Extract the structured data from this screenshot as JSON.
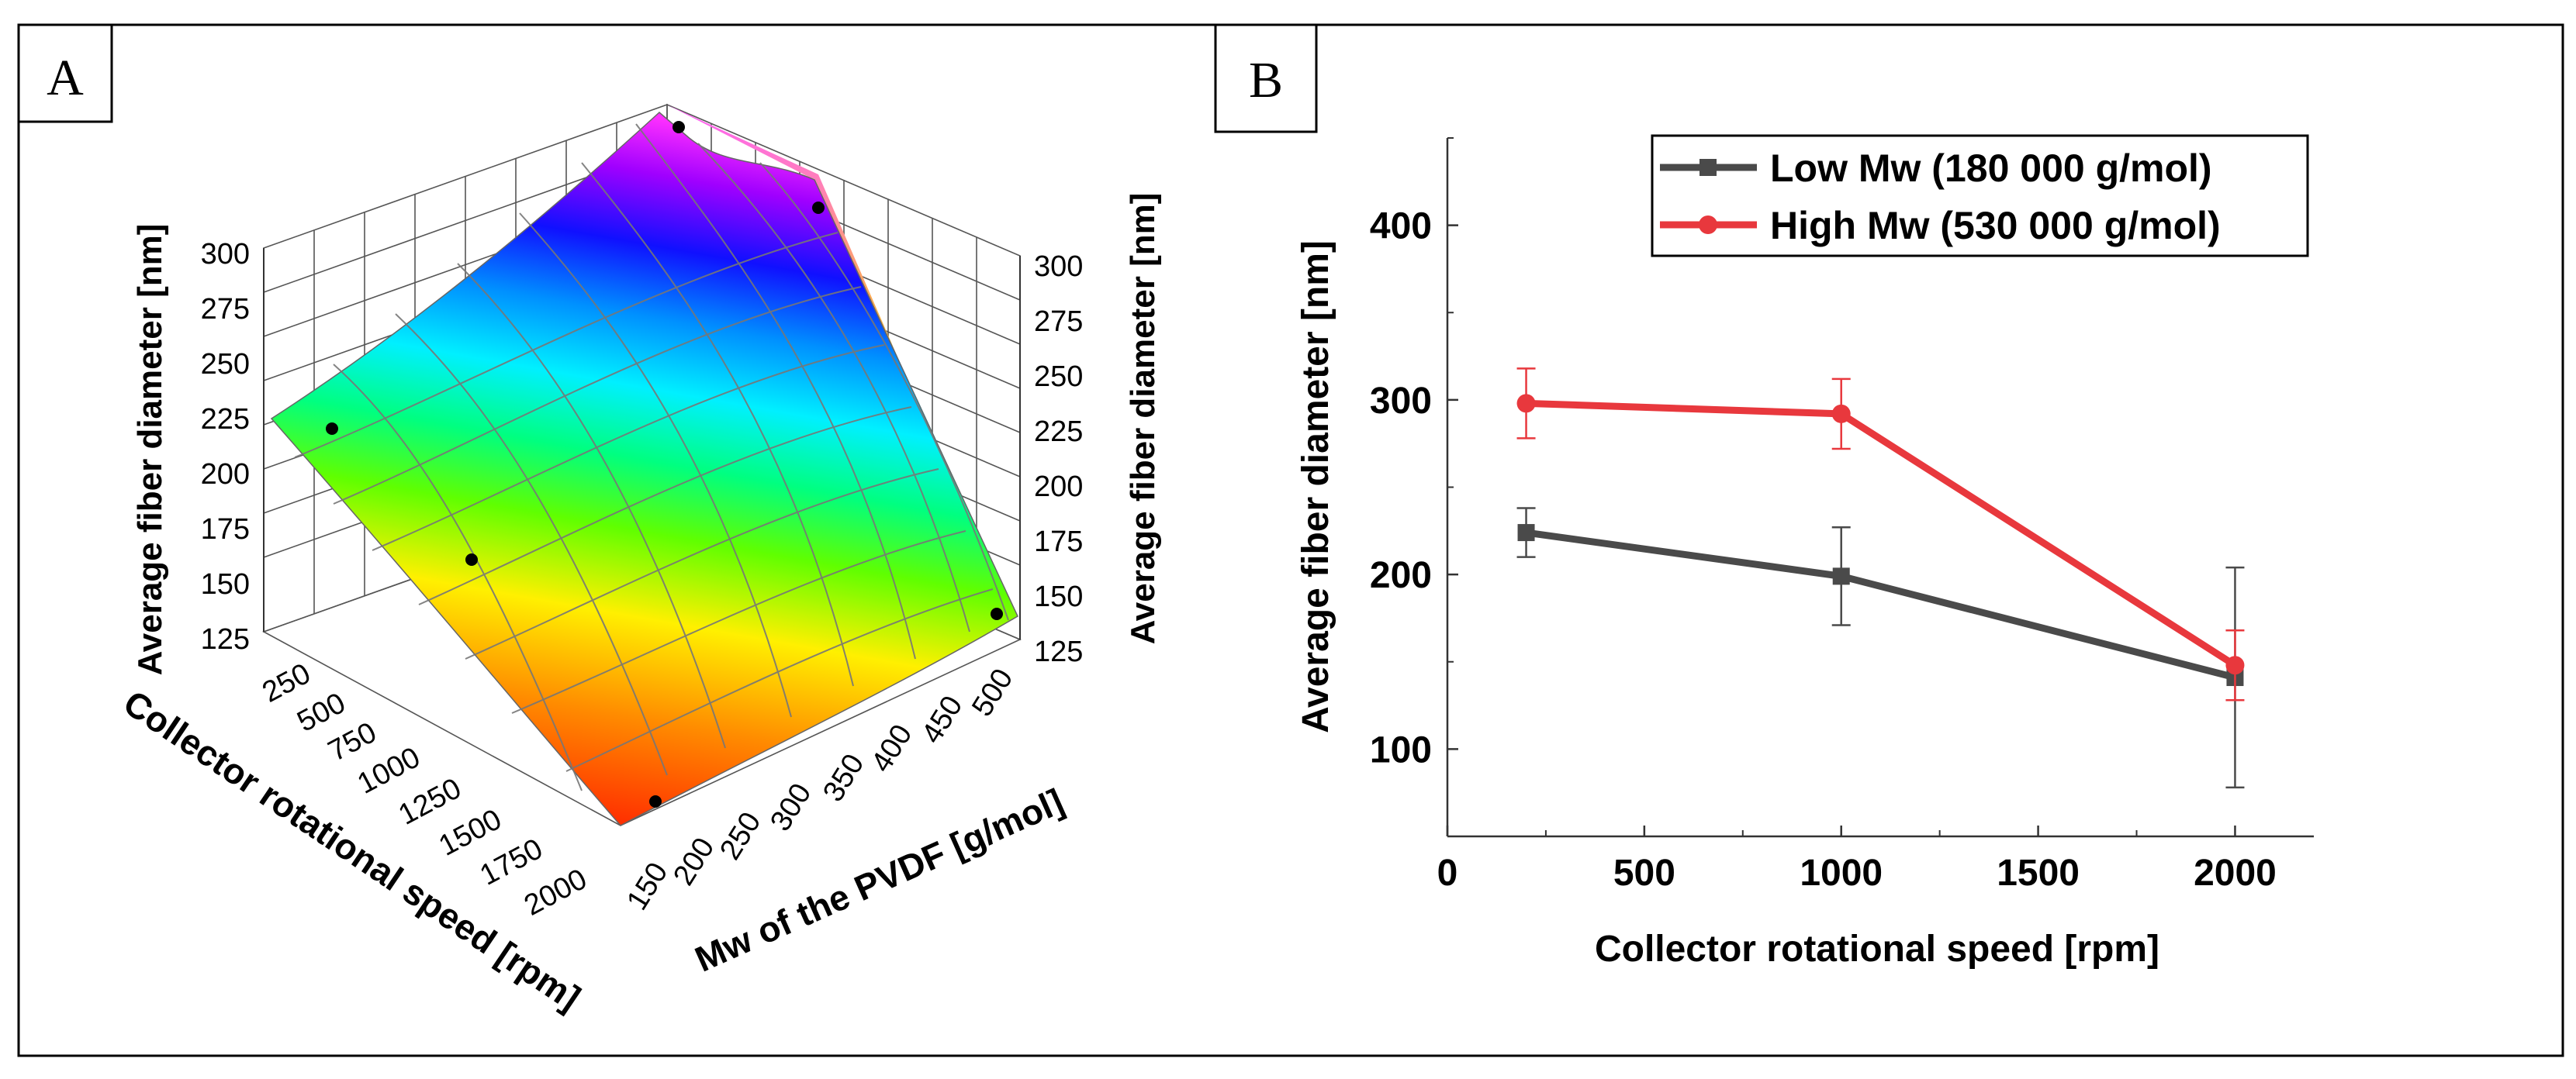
{
  "figure": {
    "panel_a_label": "A",
    "panel_b_label": "B"
  },
  "chart_data": [
    {
      "panel": "A",
      "type": "surface",
      "zlabel_left": "Average fiber diameter [nm]",
      "zlabel_right": "Average fiber diameter [nm]",
      "xlabel": "Collector rotational speed [rpm]",
      "ylabel": "Mw of the PVDF [g/mol]",
      "z_ticks": [
        "300",
        "275",
        "250",
        "225",
        "200",
        "175",
        "150",
        "125"
      ],
      "z_ticks_right": [
        "300",
        "275",
        "250",
        "225",
        "200",
        "175",
        "150",
        "125"
      ],
      "x_ticks": [
        "250",
        "500",
        "750",
        "1000",
        "1250",
        "1500",
        "1750",
        "2000"
      ],
      "y_ticks": [
        "150",
        "200",
        "250",
        "300",
        "350",
        "400",
        "450",
        "500"
      ],
      "zlim": [
        125,
        300
      ],
      "points": [
        {
          "speed": 200,
          "mw": 180,
          "diameter": 224
        },
        {
          "speed": 1000,
          "mw": 180,
          "diameter": 199
        },
        {
          "speed": 2000,
          "mw": 180,
          "diameter": 141
        },
        {
          "speed": 200,
          "mw": 530,
          "diameter": 298
        },
        {
          "speed": 1000,
          "mw": 530,
          "diameter": 292
        },
        {
          "speed": 2000,
          "mw": 530,
          "diameter": 148
        }
      ]
    },
    {
      "panel": "B",
      "type": "line",
      "xlabel": "Collector rotational speed [rpm]",
      "ylabel": "Average fiber diameter [nm]",
      "xlim": [
        0,
        2200
      ],
      "ylim": [
        50,
        450
      ],
      "x_ticks": [
        "0",
        "500",
        "1000",
        "1500",
        "2000"
      ],
      "y_ticks": [
        "100",
        "200",
        "300",
        "400"
      ],
      "x": [
        200,
        1000,
        2000
      ],
      "series": [
        {
          "name": "Low Mw (180 000 g/mol)",
          "color": "#4a4a4a",
          "marker": "square",
          "values": [
            224,
            199,
            141
          ],
          "errors": [
            14,
            28,
            63
          ]
        },
        {
          "name": "High Mw (530 000 g/mol)",
          "color": "#e8383d",
          "marker": "circle",
          "values": [
            298,
            292,
            148
          ],
          "errors": [
            20,
            20,
            20
          ]
        }
      ],
      "legend_position": "top-right"
    }
  ]
}
